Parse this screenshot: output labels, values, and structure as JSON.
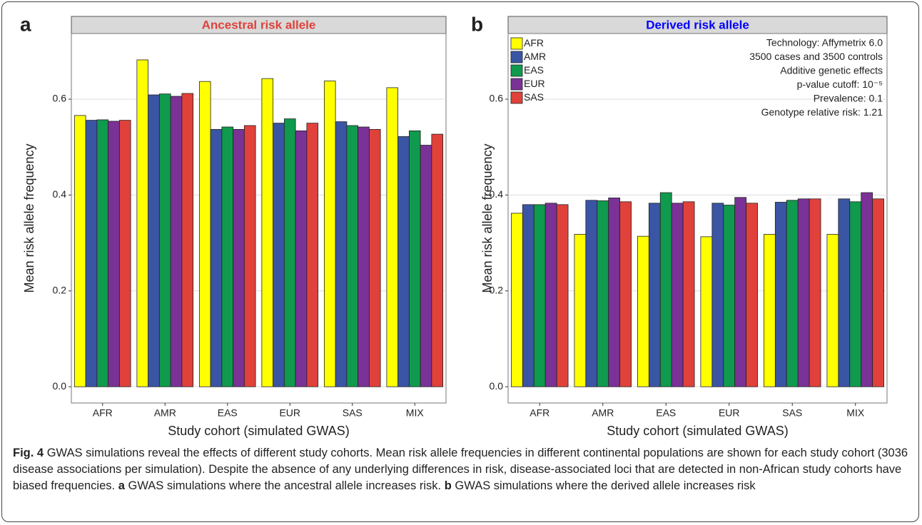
{
  "chart_data": [
    {
      "type": "bar",
      "panel_label": "a",
      "title": "Ancestral risk allele",
      "title_color": "#e0413a",
      "xlabel": "Study cohort (simulated GWAS)",
      "ylabel": "Mean risk allele frequency",
      "categories": [
        "AFR",
        "AMR",
        "EAS",
        "EUR",
        "SAS",
        "MIX"
      ],
      "series": [
        {
          "color": "#ffff00",
          "values": [
            0.566,
            0.682,
            0.637,
            0.643,
            0.638,
            0.624
          ]
        },
        {
          "color": "#3a55a4",
          "values": [
            0.556,
            0.609,
            0.537,
            0.55,
            0.553,
            0.522
          ]
        },
        {
          "color": "#0f9a4d",
          "values": [
            0.557,
            0.611,
            0.542,
            0.559,
            0.545,
            0.534
          ]
        },
        {
          "color": "#7a3296",
          "values": [
            0.554,
            0.606,
            0.537,
            0.534,
            0.542,
            0.504
          ]
        },
        {
          "color": "#e0413a",
          "values": [
            0.556,
            0.612,
            0.545,
            0.55,
            0.537,
            0.527
          ]
        }
      ],
      "ylim": [
        -0.034,
        0.737
      ],
      "yticks": [
        {
          "value": 0,
          "label": "0.0"
        },
        0.2,
        0.4,
        0.6
      ],
      "grid": true
    },
    {
      "type": "bar",
      "panel_label": "b",
      "title": "Derived risk allele",
      "title_color": "#0000ff",
      "xlabel": "Study cohort (simulated GWAS)",
      "ylabel": "Mean risk allele frequency",
      "categories": [
        "AFR",
        "AMR",
        "EAS",
        "EUR",
        "SAS",
        "MIX"
      ],
      "series": [
        {
          "name": "AFR",
          "color": "#ffff00",
          "values": [
            0.362,
            0.318,
            0.314,
            0.313,
            0.318,
            0.318
          ]
        },
        {
          "name": "AMR",
          "color": "#3a55a4",
          "values": [
            0.38,
            0.389,
            0.383,
            0.383,
            0.385,
            0.392
          ]
        },
        {
          "name": "EAS",
          "color": "#0f9a4d",
          "values": [
            0.38,
            0.388,
            0.405,
            0.379,
            0.389,
            0.386
          ]
        },
        {
          "name": "EUR",
          "color": "#7a3296",
          "values": [
            0.383,
            0.394,
            0.383,
            0.395,
            0.392,
            0.405
          ]
        },
        {
          "name": "SAS",
          "color": "#e0413a",
          "values": [
            0.38,
            0.386,
            0.386,
            0.383,
            0.392,
            0.392
          ]
        }
      ],
      "legend": "top-left",
      "annotations": [
        "Technology: Affymetrix 6.0",
        "3500 cases and 3500 controls",
        "Additive genetic effects",
        "p-value cutoff: 10⁻⁵",
        "Prevalence: 0.1",
        "Genotype relative risk: 1.21"
      ],
      "ylim": [
        -0.034,
        0.737
      ],
      "yticks": [
        {
          "value": 0,
          "label": "0.0"
        },
        0.2,
        0.4,
        0.6
      ],
      "grid": true
    }
  ],
  "caption": {
    "label": "Fig. 4",
    "text": "GWAS simulations reveal the effects of different study cohorts. Mean risk allele frequencies in different continental populations are shown for each study cohort (3036 disease associations per simulation). Despite the absence of any underlying differences in risk, disease-associated loci that are detected in non-African study cohorts have biased frequencies.",
    "panels": [
      {
        "label": "a",
        "text": "GWAS simulations where the ancestral allele increases risk."
      },
      {
        "label": "b",
        "text": "GWAS simulations where the derived allele increases risk"
      }
    ]
  }
}
